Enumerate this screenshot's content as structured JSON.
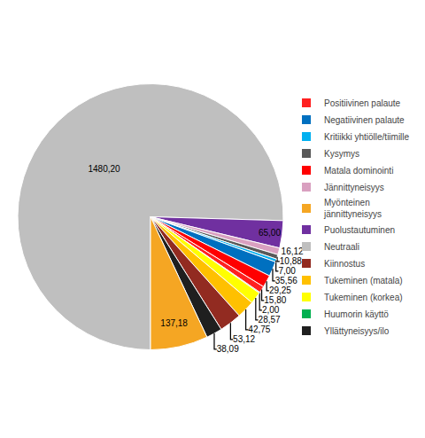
{
  "chart_data": {
    "type": "pie",
    "categories": [
      "Neutraali",
      "Puolustautuminen",
      "Jännittyneisyys",
      "Kysymys",
      "Kritiikki yhtiölle/tiimille",
      "Negatiivinen palaute",
      "Matala dominointi",
      "Positiivinen palaute",
      "Huumorin käyttö",
      "Tukeminen (korkea)",
      "Tukeminen (matala)",
      "Kiinnostus",
      "Yllättyneisyys/ilo",
      "Myönteinen\njännittyneisyys"
    ],
    "values": [
      1480.2,
      65,
      16.12,
      10.88,
      7,
      35.56,
      29.25,
      15.8,
      2,
      28.57,
      42.75,
      53.12,
      38.09,
      137.18
    ],
    "value_labels": [
      "1480,20",
      "65,00",
      "16,12",
      "10,88",
      "7,00",
      "35,56",
      "29,25",
      "15,80",
      "2,00",
      "28,57",
      "42,75",
      "53,12",
      "38,09",
      "137,18"
    ],
    "colors": [
      "#BFBFBF",
      "#7030A0",
      "#D9A0C0",
      "#595959",
      "#00B0F0",
      "#0070C0",
      "#FF0000",
      "#FF2020",
      "#00B050",
      "#FFFF00",
      "#FFC000",
      "#922B21",
      "#1F1F1F",
      "#F5A623"
    ],
    "data_labels": true,
    "legend": "right",
    "series": [
      {
        "name": "Positiivinen palaute",
        "color": "#FF2020"
      },
      {
        "name": "Negatiivinen palaute",
        "color": "#0070C0"
      },
      {
        "name": "Kritiikki yhtiölle/tiimille",
        "color": "#00B0F0"
      },
      {
        "name": "Kysymys",
        "color": "#595959"
      },
      {
        "name": "Matala dominointi",
        "color": "#FF0000"
      },
      {
        "name": "Jännittyneisyys",
        "color": "#D9A0C0"
      },
      {
        "name": "Myönteinen\njännittyneisyys",
        "color": "#F5A623"
      },
      {
        "name": "Puolustautuminen",
        "color": "#7030A0"
      },
      {
        "name": "Neutraali",
        "color": "#BFBFBF"
      },
      {
        "name": "Kiinnostus",
        "color": "#922B21"
      },
      {
        "name": "Tukeminen (matala)",
        "color": "#FFC000"
      },
      {
        "name": "Tukeminen (korkea)",
        "color": "#FFFF00"
      },
      {
        "name": "Huumorin käyttö",
        "color": "#00B050"
      },
      {
        "name": "Yllättyneisyys/ilo",
        "color": "#1F1F1F"
      }
    ]
  }
}
